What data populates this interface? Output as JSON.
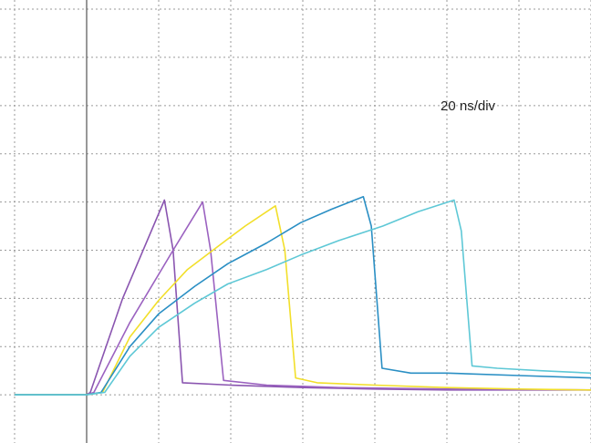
{
  "chart_data": {
    "type": "line",
    "annotation": "20 ns/div",
    "xlim": [
      -1,
      7
    ],
    "ylim": [
      -1,
      8.19
    ],
    "xticks": [
      -1,
      0,
      1,
      2,
      3,
      4,
      5,
      6,
      7
    ],
    "yticks": [
      0,
      1,
      2,
      3,
      4,
      5,
      6,
      7,
      8
    ],
    "grid": true,
    "series": [
      {
        "color": "#8a55b0",
        "x": [
          -1,
          0,
          0.05,
          0.5,
          1.08,
          1.2,
          1.33,
          2,
          3,
          4,
          5,
          6,
          7
        ],
        "values": [
          0,
          0,
          0.05,
          2.0,
          4.04,
          3.0,
          0.25,
          0.2,
          0.15,
          0.12,
          0.1,
          0.1,
          0.1
        ]
      },
      {
        "color": "#9b62c0",
        "x": [
          -1,
          0,
          0.1,
          0.6,
          1.2,
          1.61,
          1.72,
          1.9,
          2.5,
          3.5,
          5,
          7
        ],
        "values": [
          0,
          0,
          0.05,
          1.5,
          3.0,
          4.0,
          3.0,
          0.3,
          0.2,
          0.15,
          0.12,
          0.1
        ]
      },
      {
        "color": "#f2df2a",
        "x": [
          -1,
          0,
          0.22,
          0.6,
          1.0,
          1.4,
          1.84,
          2.2,
          2.62,
          2.75,
          2.9,
          3.2,
          4,
          5,
          6,
          7
        ],
        "values": [
          0,
          0,
          0.05,
          1.2,
          1.96,
          2.6,
          3.1,
          3.5,
          3.92,
          3.0,
          0.35,
          0.25,
          0.2,
          0.15,
          0.12,
          0.1
        ]
      },
      {
        "color": "#2a8fc4",
        "x": [
          -1,
          0,
          0.2,
          0.6,
          1.0,
          1.5,
          1.96,
          2.5,
          2.97,
          3.4,
          3.84,
          3.95,
          4.1,
          4.5,
          5,
          6,
          7
        ],
        "values": [
          0,
          0,
          0.05,
          1.0,
          1.68,
          2.25,
          2.72,
          3.15,
          3.57,
          3.85,
          4.11,
          3.5,
          0.55,
          0.45,
          0.45,
          0.4,
          0.35
        ]
      },
      {
        "color": "#5ec8d6",
        "x": [
          -1,
          0,
          0.25,
          0.6,
          1.0,
          1.5,
          1.96,
          2.5,
          2.97,
          3.5,
          4.11,
          4.6,
          5.1,
          5.2,
          5.35,
          5.7,
          6.3,
          7
        ],
        "values": [
          0,
          0,
          0.05,
          0.8,
          1.4,
          1.9,
          2.3,
          2.6,
          2.9,
          3.2,
          3.5,
          3.8,
          4.04,
          3.4,
          0.6,
          0.55,
          0.5,
          0.45
        ]
      }
    ]
  }
}
